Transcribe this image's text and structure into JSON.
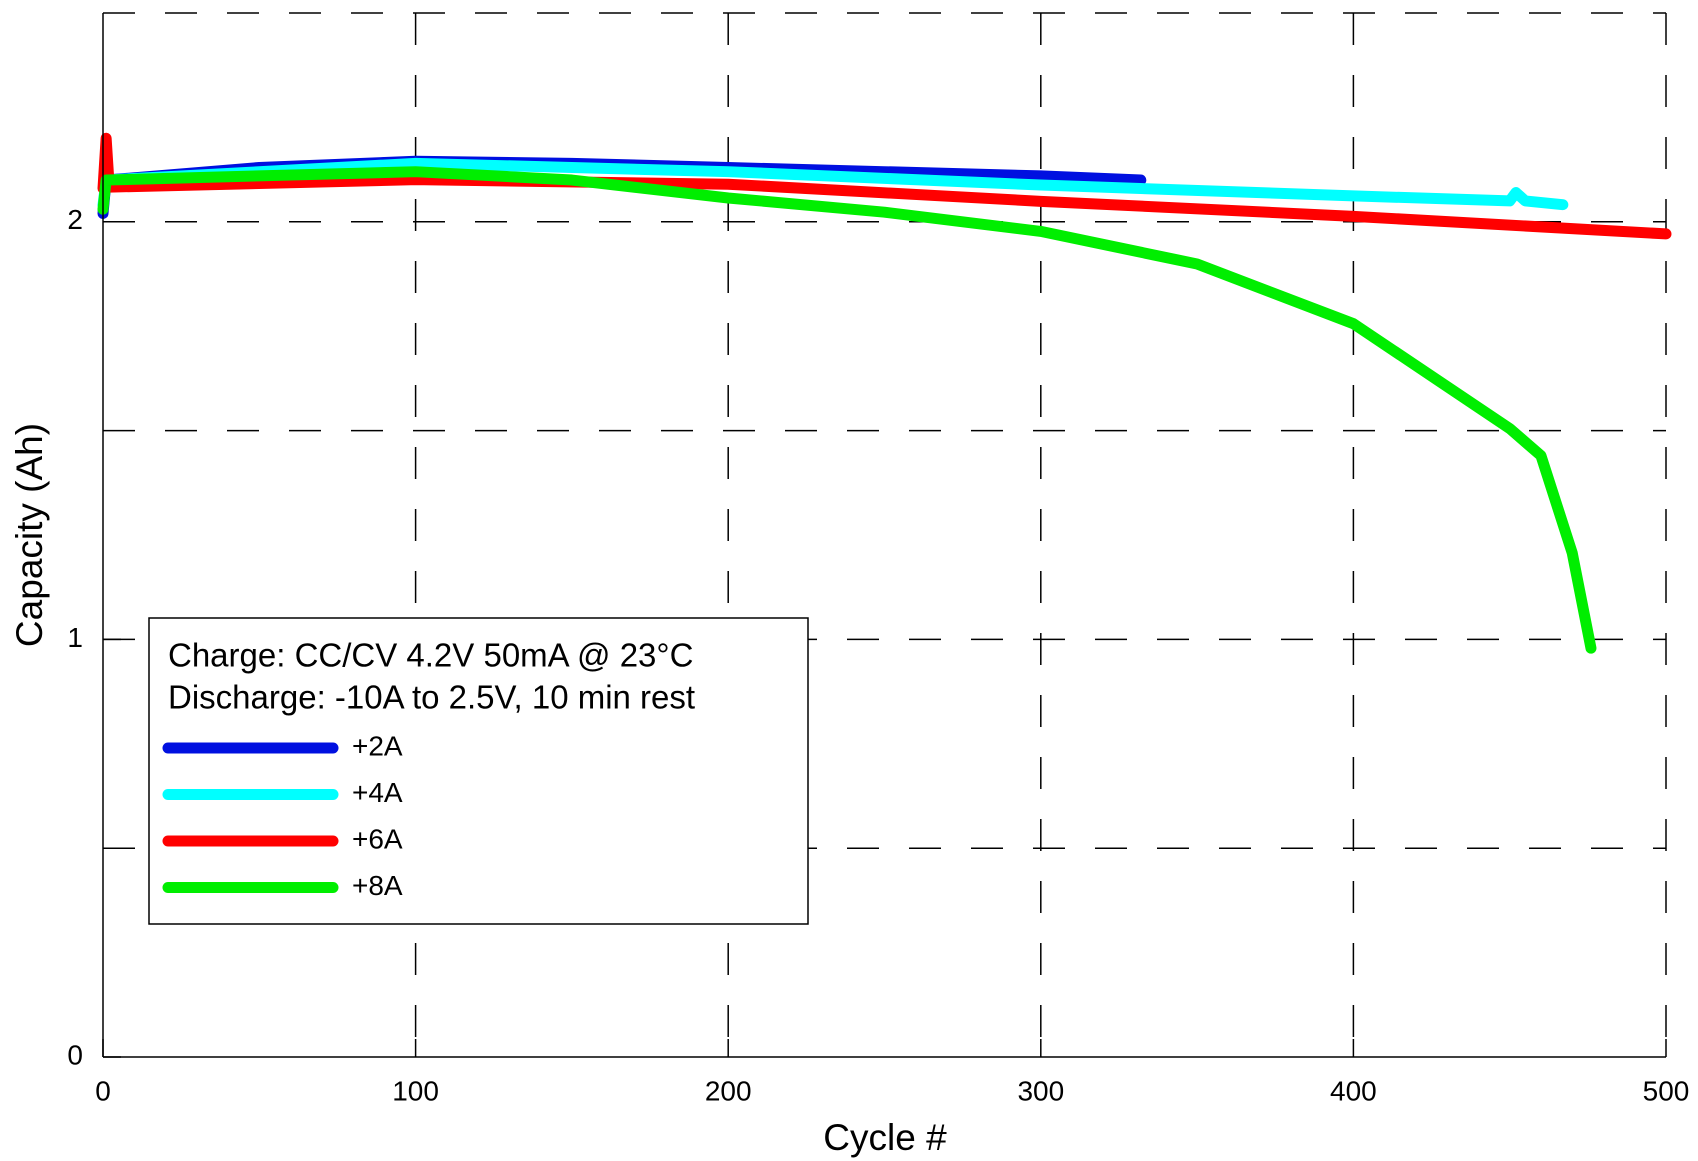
{
  "chart_data": {
    "type": "line",
    "x_label": "Cycle #",
    "y_label": "Capacity (Ah)",
    "annotations": [
      "Charge: CC/CV 4.2V 50mA @ 23°C",
      "Discharge: -10A to 2.5V, 10 min rest"
    ],
    "xlim": [
      0,
      500
    ],
    "xticks": [
      0,
      100,
      200,
      300,
      400,
      500
    ],
    "ylim": [
      0,
      2.5
    ],
    "yticks": [
      0,
      1,
      2
    ],
    "ygrid": [
      0.5,
      1,
      1.5,
      2,
      2.5
    ],
    "grid": true,
    "legend": "lower left",
    "series": [
      {
        "name": "+2A",
        "color": "#0010e0",
        "x": [
          0,
          1,
          50,
          100,
          150,
          200,
          250,
          300,
          332
        ],
        "values": [
          2.02,
          2.1,
          2.13,
          2.145,
          2.14,
          2.13,
          2.12,
          2.11,
          2.1
        ]
      },
      {
        "name": "+4A",
        "color": "#00ffff",
        "x": [
          0,
          1,
          100,
          200,
          300,
          400,
          450,
          452,
          455,
          467
        ],
        "values": [
          2.04,
          2.1,
          2.14,
          2.12,
          2.088,
          2.062,
          2.05,
          2.07,
          2.05,
          2.041
        ]
      },
      {
        "name": "+6A",
        "color": "#ff0000",
        "x": [
          0,
          1,
          2,
          100,
          200,
          300,
          400,
          500
        ],
        "values": [
          2.08,
          2.2,
          2.083,
          2.101,
          2.09,
          2.049,
          2.013,
          1.971
        ]
      },
      {
        "name": "+8A",
        "color": "#00ee00",
        "x": [
          0,
          1,
          100,
          150,
          200,
          250,
          300,
          350,
          400,
          450,
          460,
          470,
          476
        ],
        "values": [
          2.03,
          2.1,
          2.12,
          2.1,
          2.057,
          2.023,
          1.977,
          1.899,
          1.756,
          1.505,
          1.44,
          1.207,
          0.979
        ]
      }
    ]
  }
}
